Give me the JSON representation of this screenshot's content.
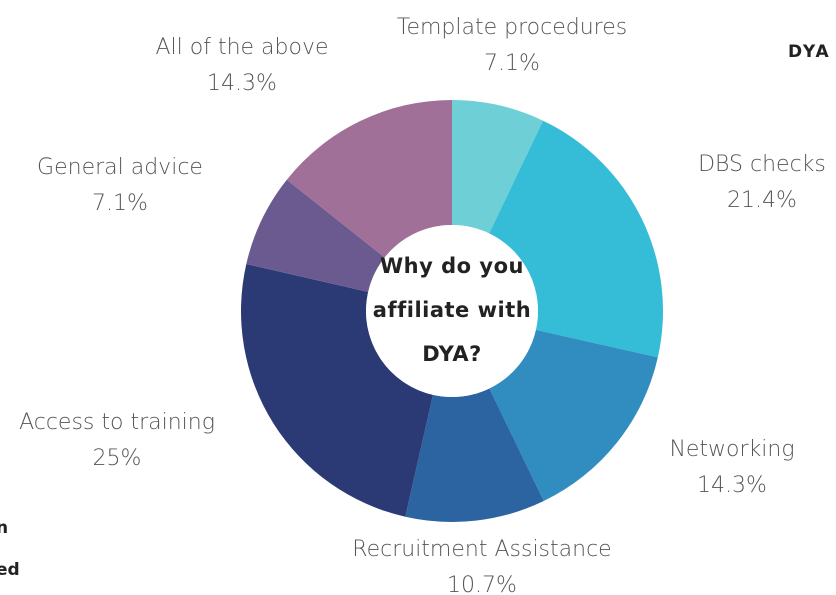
{
  "chart_data": {
    "type": "donut",
    "title": [
      "Why do you",
      "affiliate with",
      "DYA?"
    ],
    "categories": [
      "Template procedures",
      "DBS checks",
      "Networking",
      "Recruitment Assistance",
      "Access to training",
      "General advice",
      "All of the above"
    ],
    "values": [
      7.1,
      21.4,
      14.3,
      10.7,
      25,
      7.1,
      14.3
    ],
    "value_labels": [
      "7.1%",
      "21.4%",
      "14.3%",
      "10.7%",
      "25%",
      "7.1%",
      "14.3%"
    ],
    "colors": [
      "#6ecfd6",
      "#35bcd6",
      "#318cbf",
      "#2b64a0",
      "#2b3a75",
      "#6b5a90",
      "#a07099"
    ]
  },
  "page_fragments": {
    "header": "DYA |",
    "left_lines": [
      "n",
      "ed"
    ]
  }
}
